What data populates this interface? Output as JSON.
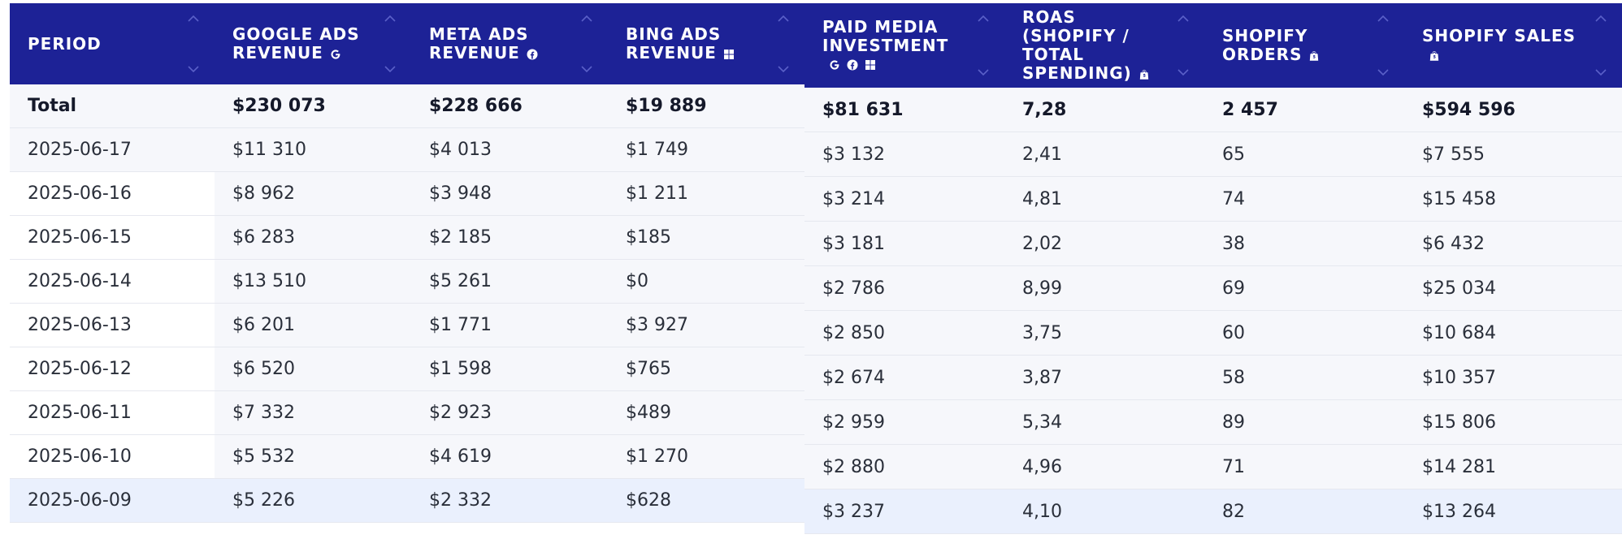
{
  "left_table": {
    "headers": [
      {
        "label": "Period",
        "icons": []
      },
      {
        "label": "Google Ads Revenue",
        "icons": [
          "google-icon"
        ]
      },
      {
        "label": "Meta Ads Revenue",
        "icons": [
          "facebook-icon"
        ]
      },
      {
        "label": "Bing Ads Revenue",
        "icons": [
          "windows-icon"
        ]
      }
    ],
    "rows": [
      [
        "Total",
        "$230 073",
        "$228 666",
        "$19 889"
      ],
      [
        "2025-06-17",
        "$11 310",
        "$4 013",
        "$1 749"
      ],
      [
        "2025-06-16",
        "$8 962",
        "$3 948",
        "$1 211"
      ],
      [
        "2025-06-15",
        "$6 283",
        "$2 185",
        "$185"
      ],
      [
        "2025-06-14",
        "$13 510",
        "$5 261",
        "$0"
      ],
      [
        "2025-06-13",
        "$6 201",
        "$1 771",
        "$3 927"
      ],
      [
        "2025-06-12",
        "$6 520",
        "$1 598",
        "$765"
      ],
      [
        "2025-06-11",
        "$7 332",
        "$2 923",
        "$489"
      ],
      [
        "2025-06-10",
        "$5 532",
        "$4 619",
        "$1 270"
      ],
      [
        "2025-06-09",
        "$5 226",
        "$2 332",
        "$628"
      ]
    ]
  },
  "right_table": {
    "headers": [
      {
        "label": "Paid Media Investment",
        "icons": [
          "google-icon",
          "facebook-icon",
          "windows-icon"
        ]
      },
      {
        "label": "ROAS (Shopify / Total Spending)",
        "icons": [
          "shopify-icon"
        ]
      },
      {
        "label": "Shopify Orders",
        "icons": [
          "shopify-icon"
        ]
      },
      {
        "label": "Shopify Sales",
        "icons": [
          "shopify-icon"
        ]
      }
    ],
    "rows": [
      [
        "$81 631",
        "7,28",
        "2 457",
        "$594 596"
      ],
      [
        "$3 132",
        "2,41",
        "65",
        "$7 555"
      ],
      [
        "$3 214",
        "4,81",
        "74",
        "$15 458"
      ],
      [
        "$3 181",
        "2,02",
        "38",
        "$6 432"
      ],
      [
        "$2 786",
        "8,99",
        "69",
        "$25 034"
      ],
      [
        "$2 850",
        "3,75",
        "60",
        "$10 684"
      ],
      [
        "$2 674",
        "3,87",
        "58",
        "$10 357"
      ],
      [
        "$2 959",
        "5,34",
        "89",
        "$15 806"
      ],
      [
        "$2 880",
        "4,96",
        "71",
        "$14 281"
      ],
      [
        "$3 237",
        "4,10",
        "82",
        "$13 264"
      ]
    ]
  },
  "colors": {
    "header_bg": "#1d2296",
    "header_text": "#ffffff",
    "row_bg": "#f6f7fb",
    "row_highlight": "#eaf0fd"
  }
}
